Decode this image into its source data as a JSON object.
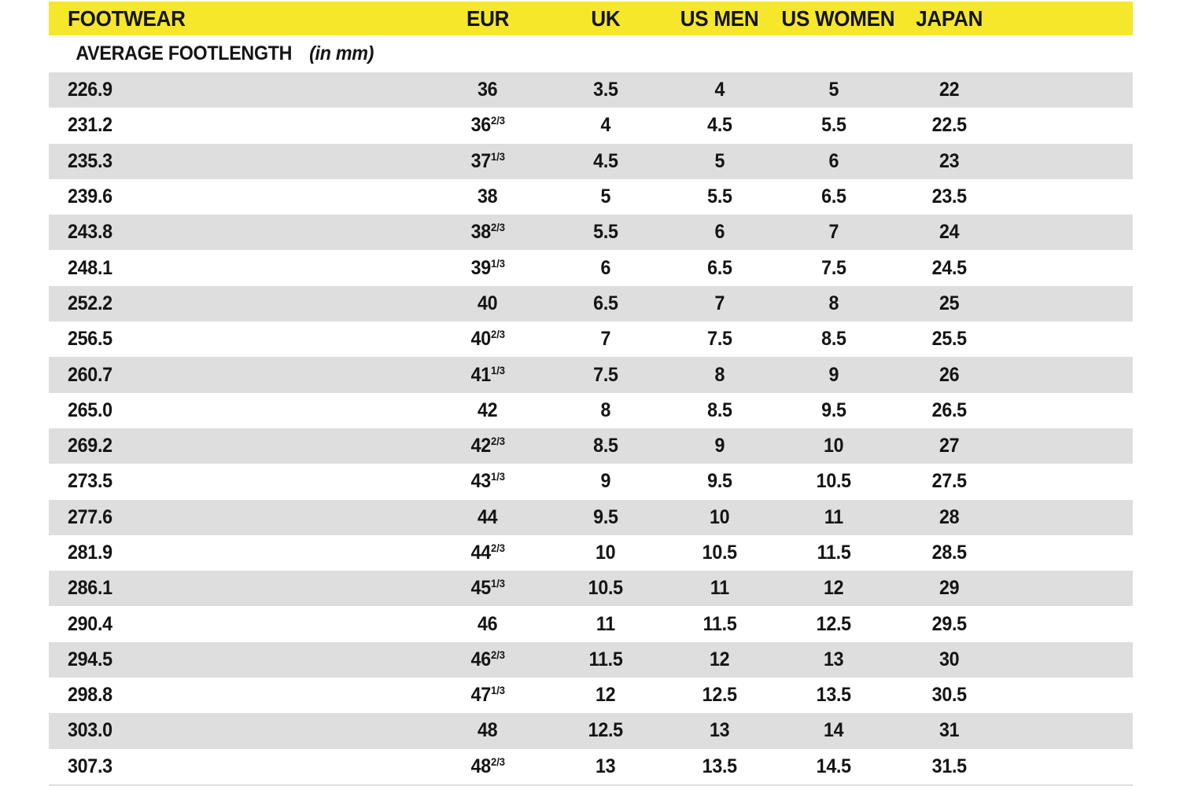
{
  "colors": {
    "page_bg": "#FFFFFF",
    "header_bg": "#F6E72B",
    "row_bg": "#FFFFFF",
    "row_alt_bg": "#DEDEDE",
    "text": "#141414"
  },
  "chart_data": {
    "type": "table",
    "title": "FOOTWEAR",
    "columns": [
      "FOOTWEAR",
      "EUR",
      "UK",
      "US MEN",
      "US WOMEN",
      "JAPAN"
    ],
    "subheader": {
      "text": "AVERAGE FOOTLENGTH",
      "unit": "(in mm)"
    },
    "rows": [
      {
        "footlength_mm": "226.9",
        "eur": "36",
        "eur_fraction": "",
        "uk": "3.5",
        "us_men": "4",
        "us_women": "5",
        "japan": "22"
      },
      {
        "footlength_mm": "231.2",
        "eur": "36",
        "eur_fraction": "2/3",
        "uk": "4",
        "us_men": "4.5",
        "us_women": "5.5",
        "japan": "22.5"
      },
      {
        "footlength_mm": "235.3",
        "eur": "37",
        "eur_fraction": "1/3",
        "uk": "4.5",
        "us_men": "5",
        "us_women": "6",
        "japan": "23"
      },
      {
        "footlength_mm": "239.6",
        "eur": "38",
        "eur_fraction": "",
        "uk": "5",
        "us_men": "5.5",
        "us_women": "6.5",
        "japan": "23.5"
      },
      {
        "footlength_mm": "243.8",
        "eur": "38",
        "eur_fraction": "2/3",
        "uk": "5.5",
        "us_men": "6",
        "us_women": "7",
        "japan": "24"
      },
      {
        "footlength_mm": "248.1",
        "eur": "39",
        "eur_fraction": "1/3",
        "uk": "6",
        "us_men": "6.5",
        "us_women": "7.5",
        "japan": "24.5"
      },
      {
        "footlength_mm": "252.2",
        "eur": "40",
        "eur_fraction": "",
        "uk": "6.5",
        "us_men": "7",
        "us_women": "8",
        "japan": "25"
      },
      {
        "footlength_mm": "256.5",
        "eur": "40",
        "eur_fraction": "2/3",
        "uk": "7",
        "us_men": "7.5",
        "us_women": "8.5",
        "japan": "25.5"
      },
      {
        "footlength_mm": "260.7",
        "eur": "41",
        "eur_fraction": "1/3",
        "uk": "7.5",
        "us_men": "8",
        "us_women": "9",
        "japan": "26"
      },
      {
        "footlength_mm": "265.0",
        "eur": "42",
        "eur_fraction": "",
        "uk": "8",
        "us_men": "8.5",
        "us_women": "9.5",
        "japan": "26.5"
      },
      {
        "footlength_mm": "269.2",
        "eur": "42",
        "eur_fraction": "2/3",
        "uk": "8.5",
        "us_men": "9",
        "us_women": "10",
        "japan": "27"
      },
      {
        "footlength_mm": "273.5",
        "eur": "43",
        "eur_fraction": "1/3",
        "uk": "9",
        "us_men": "9.5",
        "us_women": "10.5",
        "japan": "27.5"
      },
      {
        "footlength_mm": "277.6",
        "eur": "44",
        "eur_fraction": "",
        "uk": "9.5",
        "us_men": "10",
        "us_women": "11",
        "japan": "28"
      },
      {
        "footlength_mm": "281.9",
        "eur": "44",
        "eur_fraction": "2/3",
        "uk": "10",
        "us_men": "10.5",
        "us_women": "11.5",
        "japan": "28.5"
      },
      {
        "footlength_mm": "286.1",
        "eur": "45",
        "eur_fraction": "1/3",
        "uk": "10.5",
        "us_men": "11",
        "us_women": "12",
        "japan": "29"
      },
      {
        "footlength_mm": "290.4",
        "eur": "46",
        "eur_fraction": "",
        "uk": "11",
        "us_men": "11.5",
        "us_women": "12.5",
        "japan": "29.5"
      },
      {
        "footlength_mm": "294.5",
        "eur": "46",
        "eur_fraction": "2/3",
        "uk": "11.5",
        "us_men": "12",
        "us_women": "13",
        "japan": "30"
      },
      {
        "footlength_mm": "298.8",
        "eur": "47",
        "eur_fraction": "1/3",
        "uk": "12",
        "us_men": "12.5",
        "us_women": "13.5",
        "japan": "30.5"
      },
      {
        "footlength_mm": "303.0",
        "eur": "48",
        "eur_fraction": "",
        "uk": "12.5",
        "us_men": "13",
        "us_women": "14",
        "japan": "31"
      },
      {
        "footlength_mm": "307.3",
        "eur": "48",
        "eur_fraction": "2/3",
        "uk": "13",
        "us_men": "13.5",
        "us_women": "14.5",
        "japan": "31.5"
      }
    ]
  }
}
